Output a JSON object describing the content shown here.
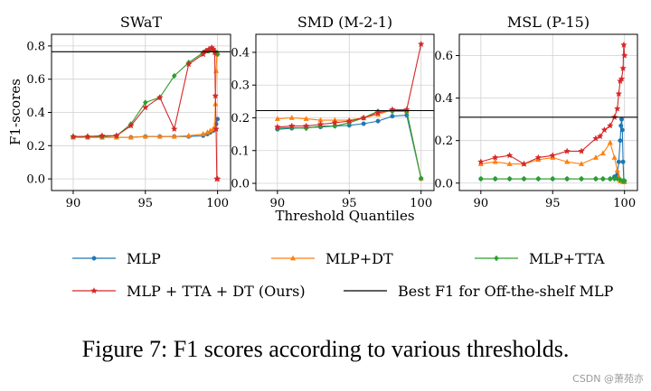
{
  "chart_data": {
    "type": "line",
    "shared_xlabel": "Threshold Quantiles",
    "shared_ylabel": "F1-scores",
    "legend": {
      "placement": "bottom",
      "entries": [
        {
          "name": "MLP",
          "color": "#1f77b4",
          "marker": "circle"
        },
        {
          "name": "MLP+DT",
          "color": "#ff7f0e",
          "marker": "triangle"
        },
        {
          "name": "MLP+TTA",
          "color": "#2ca02c",
          "marker": "diamond"
        },
        {
          "name": "MLP + TTA + DT (Ours)",
          "color": "#d62728",
          "marker": "star"
        },
        {
          "name": "Best F1 for Off-the-shelf MLP",
          "color": "#000000",
          "marker": "line"
        }
      ]
    },
    "panels": [
      {
        "title": "SWaT",
        "xlim": [
          88.5,
          100.9
        ],
        "ylim": [
          -0.07,
          0.87
        ],
        "xticks": [
          "90",
          "95",
          "100"
        ],
        "yticks": [
          "0.0",
          "0.2",
          "0.4",
          "0.6",
          "0.8"
        ],
        "grid": true,
        "best_f1": 0.765,
        "series": [
          {
            "name": "MLP",
            "x": [
              90,
              91,
              92,
              93,
              94,
              95,
              96,
              97,
              98,
              99,
              99.3,
              99.5,
              99.7,
              99.8,
              99.9,
              100
            ],
            "y": [
              0.25,
              0.25,
              0.25,
              0.25,
              0.25,
              0.255,
              0.255,
              0.255,
              0.255,
              0.26,
              0.27,
              0.28,
              0.29,
              0.3,
              0.33,
              0.36
            ]
          },
          {
            "name": "MLP+DT",
            "x": [
              90,
              91,
              92,
              93,
              94,
              95,
              96,
              97,
              98,
              99,
              99.3,
              99.5,
              99.7,
              99.8,
              99.85,
              99.9,
              99.95,
              100
            ],
            "y": [
              0.25,
              0.25,
              0.25,
              0.25,
              0.25,
              0.255,
              0.255,
              0.255,
              0.26,
              0.27,
              0.28,
              0.29,
              0.3,
              0.31,
              0.45,
              0.65,
              0.75,
              0.76
            ]
          },
          {
            "name": "MLP+TTA",
            "x": [
              90,
              91,
              92,
              93,
              94,
              95,
              96,
              97,
              98,
              99,
              99.2,
              99.4,
              99.6,
              99.8,
              99.9,
              100
            ],
            "y": [
              0.255,
              0.255,
              0.255,
              0.26,
              0.33,
              0.46,
              0.49,
              0.62,
              0.7,
              0.76,
              0.77,
              0.77,
              0.78,
              0.77,
              0.76,
              0.75
            ]
          },
          {
            "name": "MLP + TTA + DT (Ours)",
            "x": [
              90,
              91,
              92,
              93,
              94,
              95,
              96,
              97,
              98,
              99,
              99.2,
              99.4,
              99.6,
              99.7,
              99.8,
              99.85,
              99.9,
              99.95,
              100
            ],
            "y": [
              0.255,
              0.255,
              0.26,
              0.26,
              0.32,
              0.43,
              0.49,
              0.3,
              0.69,
              0.75,
              0.77,
              0.78,
              0.79,
              0.78,
              0.76,
              0.5,
              0.3,
              0.0,
              0.0
            ]
          }
        ]
      },
      {
        "title": "SMD (M-2-1)",
        "xlim": [
          88.5,
          100.9
        ],
        "ylim": [
          -0.022,
          0.455
        ],
        "xticks": [
          "90",
          "95",
          "100"
        ],
        "yticks": [
          "0.0",
          "0.1",
          "0.2",
          "0.3",
          "0.4"
        ],
        "grid": true,
        "best_f1": 0.222,
        "series": [
          {
            "name": "MLP",
            "x": [
              90,
              91,
              92,
              93,
              94,
              95,
              96,
              97,
              98,
              99,
              100
            ],
            "y": [
              0.165,
              0.168,
              0.17,
              0.172,
              0.175,
              0.177,
              0.182,
              0.19,
              0.205,
              0.208,
              0.015
            ]
          },
          {
            "name": "MLP+DT",
            "x": [
              90,
              91,
              92,
              93,
              94,
              95,
              96,
              97,
              98,
              99,
              100
            ],
            "y": [
              0.197,
              0.2,
              0.197,
              0.193,
              0.193,
              0.193,
              0.2,
              0.21,
              0.225,
              0.22,
              0.015
            ]
          },
          {
            "name": "MLP+TTA",
            "x": [
              90,
              91,
              92,
              93,
              94,
              95,
              96,
              97,
              98,
              99,
              100
            ],
            "y": [
              0.168,
              0.17,
              0.168,
              0.175,
              0.175,
              0.185,
              0.2,
              0.22,
              0.22,
              0.22,
              0.015
            ]
          },
          {
            "name": "MLP + TTA + DT (Ours)",
            "x": [
              90,
              91,
              92,
              93,
              94,
              95,
              96,
              97,
              98,
              99,
              100
            ],
            "y": [
              0.172,
              0.175,
              0.175,
              0.18,
              0.185,
              0.19,
              0.2,
              0.215,
              0.225,
              0.225,
              0.425
            ]
          }
        ]
      },
      {
        "title": "MSL (P-15)",
        "xlim": [
          88.5,
          100.9
        ],
        "ylim": [
          -0.035,
          0.7
        ],
        "xticks": [
          "90",
          "95",
          "100"
        ],
        "yticks": [
          "0.0",
          "0.2",
          "0.4",
          "0.6"
        ],
        "grid": true,
        "best_f1": 0.31,
        "series": [
          {
            "name": "MLP",
            "x": [
              90,
              91,
              92,
              93,
              94,
              95,
              96,
              97,
              98,
              98.5,
              99,
              99.3,
              99.5,
              99.6,
              99.7,
              99.75,
              99.8,
              99.85,
              99.9,
              99.95,
              100
            ],
            "y": [
              0.02,
              0.02,
              0.02,
              0.02,
              0.02,
              0.02,
              0.02,
              0.02,
              0.02,
              0.02,
              0.02,
              0.03,
              0.04,
              0.1,
              0.2,
              0.27,
              0.3,
              0.25,
              0.1,
              0.01,
              0.01
            ]
          },
          {
            "name": "MLP+DT",
            "x": [
              90,
              91,
              92,
              93,
              94,
              95,
              96,
              97,
              98,
              98.5,
              99,
              99.3,
              99.5,
              99.6,
              99.7,
              99.8,
              99.9,
              100
            ],
            "y": [
              0.09,
              0.1,
              0.09,
              0.09,
              0.11,
              0.12,
              0.1,
              0.09,
              0.12,
              0.14,
              0.19,
              0.12,
              0.06,
              0.03,
              0.01,
              0.01,
              0.005,
              0.005
            ]
          },
          {
            "name": "MLP+TTA",
            "x": [
              90,
              91,
              92,
              93,
              94,
              95,
              96,
              97,
              98,
              98.5,
              99,
              99.3,
              99.5,
              99.7,
              99.9,
              100
            ],
            "y": [
              0.02,
              0.02,
              0.02,
              0.02,
              0.02,
              0.02,
              0.02,
              0.02,
              0.02,
              0.02,
              0.02,
              0.02,
              0.02,
              0.015,
              0.01,
              0.01
            ]
          },
          {
            "name": "MLP + TTA + DT (Ours)",
            "x": [
              90,
              91,
              92,
              93,
              94,
              95,
              96,
              97,
              98,
              98.3,
              98.6,
              99,
              99.3,
              99.5,
              99.6,
              99.7,
              99.8,
              99.9,
              99.95,
              100
            ],
            "y": [
              0.1,
              0.12,
              0.13,
              0.09,
              0.12,
              0.13,
              0.15,
              0.15,
              0.21,
              0.22,
              0.25,
              0.27,
              0.31,
              0.35,
              0.42,
              0.48,
              0.49,
              0.54,
              0.65,
              0.6
            ]
          }
        ]
      }
    ]
  },
  "caption": "Figure 7: F1 scores according to various thresholds.",
  "watermark": "CSDN @萧苑亦"
}
